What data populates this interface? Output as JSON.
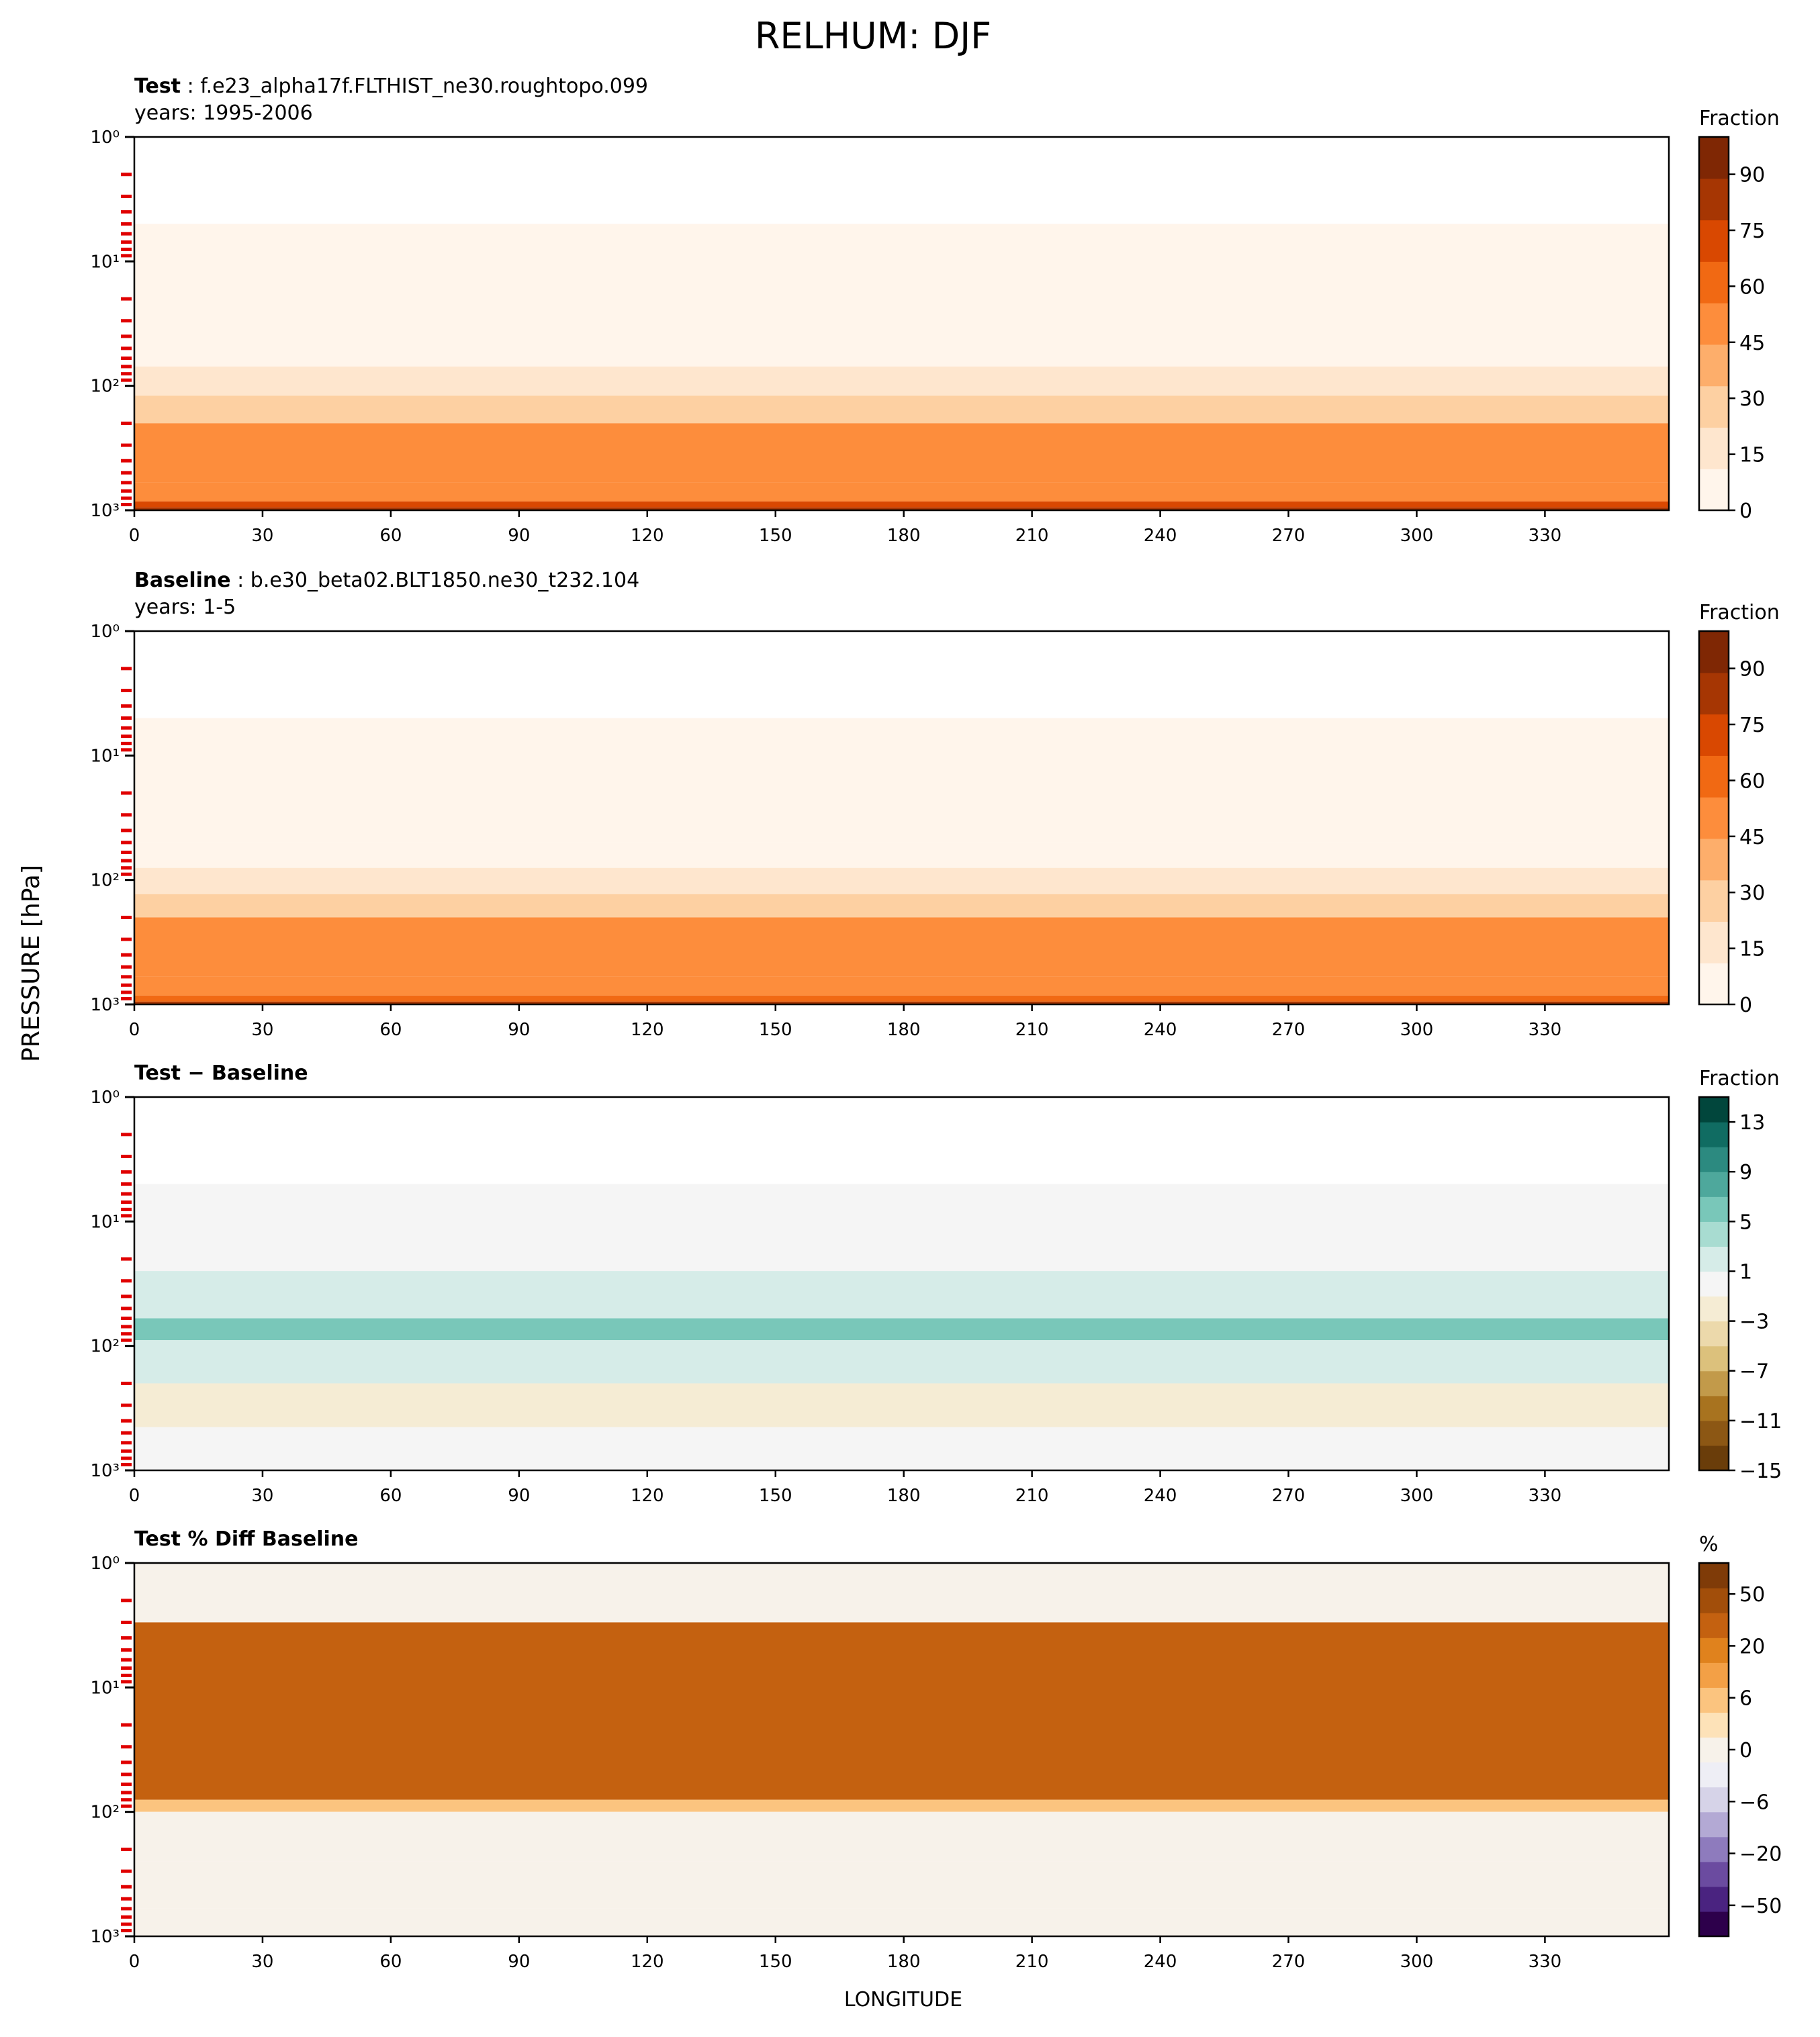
{
  "figure": {
    "title": "RELHUM: DJF",
    "ylabel": "PRESSURE [hPa]",
    "xlabel": "LONGITUDE"
  },
  "chart_data": [
    {
      "type": "heatmap",
      "title_bold": "Test",
      "title_rest": " : f.e23_alpha17f.FLTHIST_ne30.roughtopo.099",
      "subtitle": "years: 1995-2006",
      "x_ticks": [
        0,
        30,
        60,
        90,
        120,
        150,
        180,
        210,
        240,
        270,
        300,
        330
      ],
      "xlim": [
        0,
        359
      ],
      "y_scale": "log",
      "y_inverted": true,
      "ylim": [
        1,
        1000
      ],
      "y_tick_labels": [
        "10⁰",
        "10¹",
        "10²",
        "10³"
      ],
      "colorbar": {
        "label": "Fraction",
        "tick_labels": [
          "90",
          "75",
          "60",
          "45",
          "30",
          "15",
          "0"
        ],
        "range": [
          0,
          100
        ],
        "colormap": "Oranges",
        "colors": [
          "#fff5eb",
          "#fee6ce",
          "#fdd0a2",
          "#fdae6b",
          "#fd8d3c",
          "#f16913",
          "#d94801",
          "#a63603",
          "#7f2704"
        ]
      },
      "bands": [
        {
          "p_top": 1,
          "p_bottom": 5,
          "value": null
        },
        {
          "p_top": 5,
          "p_bottom": 40,
          "value": 2
        },
        {
          "p_top": 40,
          "p_bottom": 70,
          "value": 8
        },
        {
          "p_top": 70,
          "p_bottom": 120,
          "value": 22
        },
        {
          "p_top": 120,
          "p_bottom": 200,
          "value": 32
        },
        {
          "p_top": 200,
          "p_bottom": 600,
          "value": 48
        },
        {
          "p_top": 600,
          "p_bottom": 850,
          "value": 55
        },
        {
          "p_top": 850,
          "p_bottom": 950,
          "value": 68
        },
        {
          "p_top": 950,
          "p_bottom": 1000,
          "value": 85
        }
      ]
    },
    {
      "type": "heatmap",
      "title_bold": "Baseline",
      "title_rest": " : b.e30_beta02.BLT1850.ne30_t232.104",
      "subtitle": "years: 1-5",
      "x_ticks": [
        0,
        30,
        60,
        90,
        120,
        150,
        180,
        210,
        240,
        270,
        300,
        330
      ],
      "xlim": [
        0,
        359
      ],
      "y_scale": "log",
      "y_inverted": true,
      "ylim": [
        1,
        1000
      ],
      "y_tick_labels": [
        "10⁰",
        "10¹",
        "10²",
        "10³"
      ],
      "colorbar": {
        "label": "Fraction",
        "tick_labels": [
          "90",
          "75",
          "60",
          "45",
          "30",
          "15",
          "0"
        ],
        "range": [
          0,
          100
        ],
        "colormap": "Oranges",
        "colors": [
          "#fff5eb",
          "#fee6ce",
          "#fdd0a2",
          "#fdae6b",
          "#fd8d3c",
          "#f16913",
          "#d94801",
          "#a63603",
          "#7f2704"
        ]
      },
      "bands": [
        {
          "p_top": 1,
          "p_bottom": 5,
          "value": null
        },
        {
          "p_top": 5,
          "p_bottom": 50,
          "value": 2
        },
        {
          "p_top": 50,
          "p_bottom": 80,
          "value": 8
        },
        {
          "p_top": 80,
          "p_bottom": 130,
          "value": 22
        },
        {
          "p_top": 130,
          "p_bottom": 200,
          "value": 32
        },
        {
          "p_top": 200,
          "p_bottom": 600,
          "value": 48
        },
        {
          "p_top": 600,
          "p_bottom": 850,
          "value": 55
        },
        {
          "p_top": 850,
          "p_bottom": 950,
          "value": 65
        },
        {
          "p_top": 950,
          "p_bottom": 1000,
          "value": 82
        }
      ]
    },
    {
      "type": "heatmap",
      "title_bold": "Test − Baseline",
      "title_rest": "",
      "subtitle": "",
      "x_ticks": [
        0,
        30,
        60,
        90,
        120,
        150,
        180,
        210,
        240,
        270,
        300,
        330
      ],
      "xlim": [
        0,
        359
      ],
      "y_scale": "log",
      "y_inverted": true,
      "ylim": [
        1,
        1000
      ],
      "y_tick_labels": [
        "10⁰",
        "10¹",
        "10²",
        "10³"
      ],
      "colorbar": {
        "label": "Fraction",
        "tick_labels": [
          "13",
          "9",
          "5",
          "1",
          "−3",
          "−7",
          "−11",
          "−15"
        ],
        "range": [
          -15,
          15
        ],
        "colormap": "BrBG",
        "colors": [
          "#6a3d0a",
          "#8c5714",
          "#a8731f",
          "#c29a4a",
          "#dcc17c",
          "#ecd9ab",
          "#f5ecd4",
          "#f5f5f5",
          "#d6ece8",
          "#a8dcd1",
          "#79c7b9",
          "#4ea89c",
          "#2c8a80",
          "#106c62",
          "#01463c"
        ]
      },
      "bands": [
        {
          "p_top": 1,
          "p_bottom": 5,
          "value": null
        },
        {
          "p_top": 5,
          "p_bottom": 25,
          "value": 0
        },
        {
          "p_top": 25,
          "p_bottom": 60,
          "value": 2
        },
        {
          "p_top": 60,
          "p_bottom": 90,
          "value": 6
        },
        {
          "p_top": 90,
          "p_bottom": 200,
          "value": 1
        },
        {
          "p_top": 200,
          "p_bottom": 450,
          "value": -2
        },
        {
          "p_top": 450,
          "p_bottom": 1000,
          "value": 0
        }
      ]
    },
    {
      "type": "heatmap",
      "title_bold": "Test % Diff Baseline",
      "title_rest": "",
      "subtitle": "",
      "x_ticks": [
        0,
        30,
        60,
        90,
        120,
        150,
        180,
        210,
        240,
        270,
        300,
        330
      ],
      "xlim": [
        0,
        359
      ],
      "y_scale": "log",
      "y_inverted": true,
      "ylim": [
        1,
        1000
      ],
      "y_tick_labels": [
        "10⁰",
        "10¹",
        "10²",
        "10³"
      ],
      "colorbar": {
        "label": "%",
        "tick_labels": [
          "50",
          "20",
          "6",
          "0",
          "−6",
          "−20",
          "−50"
        ],
        "range": [
          -100,
          100
        ],
        "colormap": "PuOr",
        "colors": [
          "#2d004b",
          "#4a2380",
          "#6b4ba0",
          "#8e7bbd",
          "#b3a9d4",
          "#d6d3e8",
          "#eeeef5",
          "#f7f2ea",
          "#fde2b8",
          "#fbc47f",
          "#f3a046",
          "#e0821d",
          "#c46110",
          "#a24e0a",
          "#7f3b08"
        ]
      },
      "bands": [
        {
          "p_top": 1,
          "p_bottom": 3,
          "value": 0
        },
        {
          "p_top": 3,
          "p_bottom": 80,
          "value": 60
        },
        {
          "p_top": 80,
          "p_bottom": 100,
          "value": 25
        },
        {
          "p_top": 100,
          "p_bottom": 250,
          "value": 5
        },
        {
          "p_top": 250,
          "p_bottom": 600,
          "value": -4
        },
        {
          "p_top": 600,
          "p_bottom": 1000,
          "value": 2
        }
      ]
    }
  ]
}
